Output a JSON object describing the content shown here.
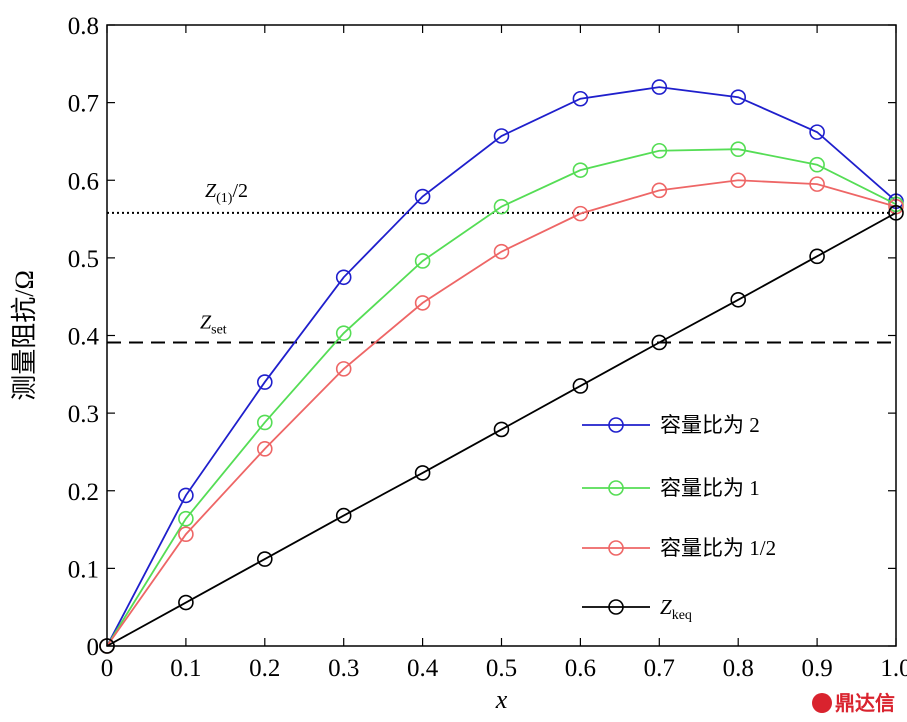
{
  "chart_data": {
    "type": "line",
    "xlabel": "x",
    "ylabel": "测量阻抗/Ω",
    "xlim": [
      0,
      1.0
    ],
    "ylim": [
      0,
      0.8
    ],
    "x_ticks": [
      "0",
      "0.1",
      "0.2",
      "0.3",
      "0.4",
      "0.5",
      "0.6",
      "0.7",
      "0.8",
      "0.9",
      "1.0"
    ],
    "y_ticks": [
      "0",
      "0.1",
      "0.2",
      "0.3",
      "0.4",
      "0.5",
      "0.6",
      "0.7",
      "0.8"
    ],
    "x": [
      0,
      0.1,
      0.2,
      0.3,
      0.4,
      0.5,
      0.6,
      0.7,
      0.8,
      0.9,
      1.0
    ],
    "series": [
      {
        "name": "容量比为 2",
        "color": "#1f1fcc",
        "values": [
          0,
          0.194,
          0.34,
          0.475,
          0.579,
          0.657,
          0.705,
          0.72,
          0.707,
          0.662,
          0.573
        ]
      },
      {
        "name": "容量比为 1",
        "color": "#55dd55",
        "values": [
          0,
          0.164,
          0.288,
          0.403,
          0.496,
          0.566,
          0.613,
          0.638,
          0.64,
          0.62,
          0.569
        ]
      },
      {
        "name": "容量比为 1/2",
        "color": "#ee6666",
        "values": [
          0,
          0.144,
          0.254,
          0.357,
          0.442,
          0.508,
          0.557,
          0.587,
          0.6,
          0.595,
          0.566
        ]
      },
      {
        "name": "Z",
        "name_sub": "keq",
        "color": "#000000",
        "values": [
          0,
          0.056,
          0.112,
          0.168,
          0.223,
          0.279,
          0.335,
          0.391,
          0.446,
          0.502,
          0.558
        ]
      }
    ],
    "reference_lines": [
      {
        "label": "Z",
        "label_sub": "(1)",
        "label_suffix": "/2",
        "y": 0.558,
        "style": "dotted"
      },
      {
        "label": "Z",
        "label_sub": "set",
        "label_suffix": "",
        "y": 0.391,
        "style": "dashed"
      }
    ],
    "legend_position": "right",
    "grid": false
  },
  "watermark": {
    "text": "鼎达信",
    "color": "#d9232e"
  }
}
